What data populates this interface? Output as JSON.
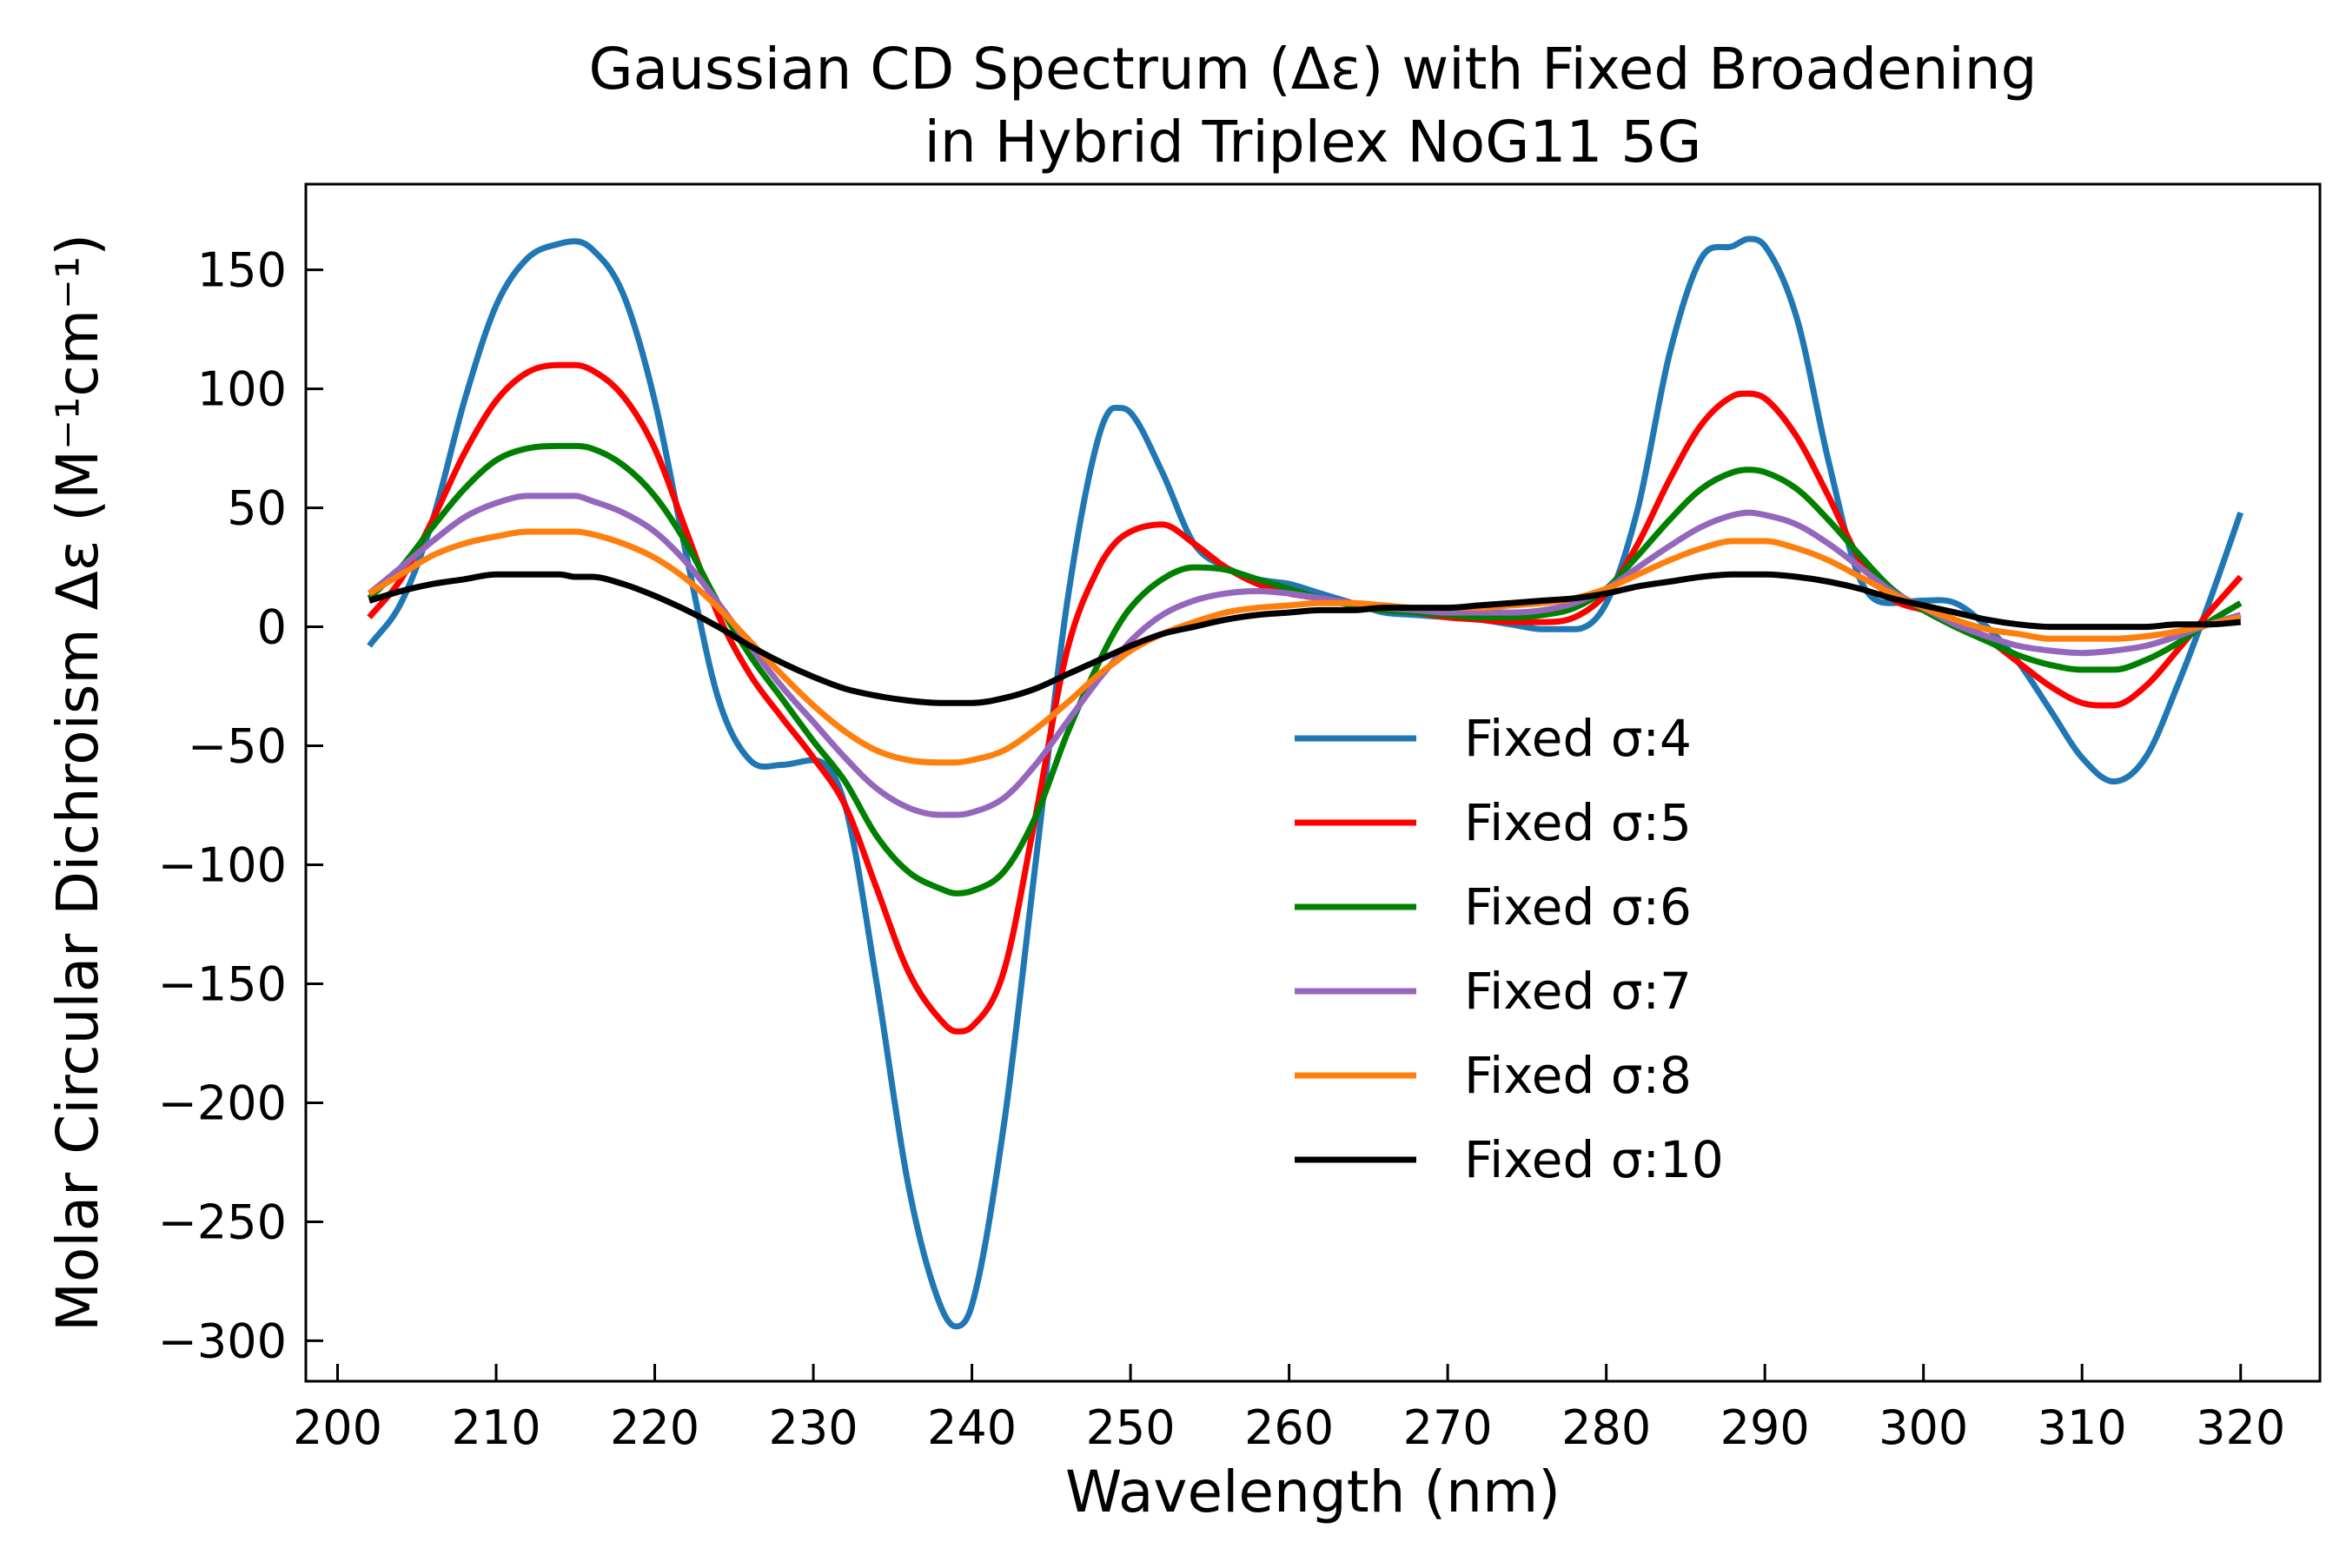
{
  "chart_data": {
    "type": "line",
    "title_lines": [
      "Gaussian CD Spectrum (Δε) with Fixed Broadening",
      "in Hybrid Triplex NoG11 5G"
    ],
    "xlabel": "Wavelength (nm)",
    "ylabel": "Molar Circular Dichroism Δε (M⁻¹cm⁻¹)",
    "xlim": [
      198,
      325
    ],
    "ylim": [
      -317,
      186
    ],
    "xticks": [
      200,
      210,
      220,
      230,
      240,
      250,
      260,
      270,
      280,
      290,
      300,
      310,
      320
    ],
    "xtick_labels": [
      "200",
      "210",
      "220",
      "230",
      "240",
      "250",
      "260",
      "270",
      "280",
      "290",
      "300",
      "310",
      "320"
    ],
    "yticks": [
      150,
      100,
      50,
      0,
      -50,
      -100,
      -150,
      -200,
      -250,
      -300
    ],
    "ytick_labels": [
      "150",
      "100",
      "50",
      "0",
      "−50",
      "−100",
      "−150",
      "−200",
      "−250",
      "−300"
    ],
    "grid": false,
    "legend_position": "center-right",
    "x": [
      202,
      204,
      206,
      208,
      210,
      212,
      214,
      215,
      216,
      218,
      220,
      222,
      224,
      226,
      228,
      230,
      232,
      234,
      236,
      238,
      239,
      240,
      242,
      244,
      246,
      248,
      249,
      250,
      252,
      254,
      256,
      258,
      260,
      262,
      264,
      266,
      268,
      270,
      272,
      274,
      276,
      278,
      280,
      282,
      284,
      286,
      288,
      289,
      290,
      292,
      294,
      296,
      298,
      300,
      302,
      304,
      306,
      308,
      310,
      312,
      314,
      316,
      318,
      320
    ],
    "series": [
      {
        "name": "Fixed σ:4",
        "color": "#1f77b4",
        "values": [
          -8,
          10,
          45,
          95,
          135,
          155,
          161,
          162,
          159,
          140,
          95,
          30,
          -30,
          -56,
          -58,
          -56,
          -75,
          -150,
          -235,
          -285,
          -294,
          -285,
          -210,
          -100,
          10,
          80,
          92,
          90,
          65,
          35,
          25,
          20,
          18,
          14,
          10,
          6,
          5,
          4,
          3,
          1,
          -1,
          -1,
          10,
          50,
          115,
          155,
          160,
          163,
          160,
          130,
          70,
          20,
          10,
          11,
          10,
          0,
          -15,
          -35,
          -55,
          -65,
          -55,
          -25,
          10,
          48
        ]
      },
      {
        "name": "Fixed σ:5",
        "color": "#ff0000",
        "values": [
          4,
          20,
          45,
          73,
          95,
          107,
          110,
          110,
          108,
          97,
          75,
          40,
          5,
          -20,
          -38,
          -55,
          -75,
          -110,
          -145,
          -165,
          -170,
          -168,
          -145,
          -80,
          -10,
          25,
          35,
          40,
          43,
          35,
          25,
          18,
          14,
          12,
          10,
          8,
          6,
          4,
          3,
          2,
          2,
          4,
          14,
          35,
          62,
          85,
          97,
          98,
          96,
          80,
          55,
          28,
          12,
          7,
          3,
          -5,
          -15,
          -25,
          -32,
          -33,
          -25,
          -10,
          6,
          21
        ]
      },
      {
        "name": "Fixed σ:6",
        "color": "#008000",
        "values": [
          12,
          25,
          42,
          58,
          70,
          75,
          76,
          76,
          75,
          68,
          55,
          35,
          10,
          -12,
          -30,
          -48,
          -65,
          -88,
          -103,
          -110,
          -112,
          -111,
          -103,
          -80,
          -45,
          -15,
          -2,
          8,
          20,
          25,
          24,
          20,
          16,
          12,
          9,
          7,
          6,
          5,
          4,
          4,
          5,
          8,
          16,
          30,
          45,
          58,
          65,
          66,
          65,
          58,
          45,
          30,
          16,
          7,
          0,
          -6,
          -12,
          -16,
          -18,
          -18,
          -14,
          -7,
          2,
          10
        ]
      },
      {
        "name": "Fixed σ:7",
        "color": "#9467bd",
        "values": [
          14,
          25,
          36,
          46,
          52,
          55,
          55,
          55,
          53,
          48,
          40,
          27,
          10,
          -8,
          -25,
          -40,
          -55,
          -68,
          -76,
          -79,
          -79,
          -78,
          -72,
          -58,
          -40,
          -22,
          -14,
          -6,
          5,
          11,
          14,
          15,
          14,
          12,
          10,
          8,
          7,
          6,
          6,
          6,
          7,
          10,
          16,
          25,
          34,
          42,
          47,
          48,
          47,
          43,
          35,
          25,
          15,
          8,
          1,
          -4,
          -8,
          -10,
          -11,
          -10,
          -8,
          -4,
          1,
          5
        ]
      },
      {
        "name": "Fixed σ:8",
        "color": "#ff7f0e",
        "values": [
          14,
          22,
          30,
          35,
          38,
          40,
          40,
          40,
          39,
          35,
          29,
          20,
          8,
          -6,
          -20,
          -33,
          -44,
          -52,
          -56,
          -57,
          -57,
          -56,
          -52,
          -43,
          -32,
          -20,
          -15,
          -10,
          -3,
          2,
          6,
          8,
          9,
          10,
          10,
          9,
          8,
          8,
          8,
          9,
          10,
          12,
          16,
          22,
          28,
          33,
          36,
          36,
          36,
          33,
          28,
          21,
          14,
          8,
          3,
          -1,
          -3,
          -5,
          -5,
          -5,
          -4,
          -2,
          1,
          4
        ]
      },
      {
        "name": "Fixed σ:10",
        "color": "#000000",
        "values": [
          11,
          15,
          18,
          20,
          22,
          22,
          22,
          21,
          21,
          18,
          13,
          7,
          0,
          -8,
          -15,
          -21,
          -26,
          -29,
          -31,
          -32,
          -32,
          -32,
          -30,
          -26,
          -20,
          -14,
          -11,
          -8,
          -3,
          0,
          3,
          5,
          6,
          7,
          7,
          8,
          8,
          8,
          9,
          10,
          11,
          12,
          14,
          17,
          19,
          21,
          22,
          22,
          22,
          21,
          19,
          16,
          12,
          9,
          6,
          3,
          1,
          0,
          0,
          0,
          0,
          1,
          1,
          2
        ]
      }
    ]
  }
}
